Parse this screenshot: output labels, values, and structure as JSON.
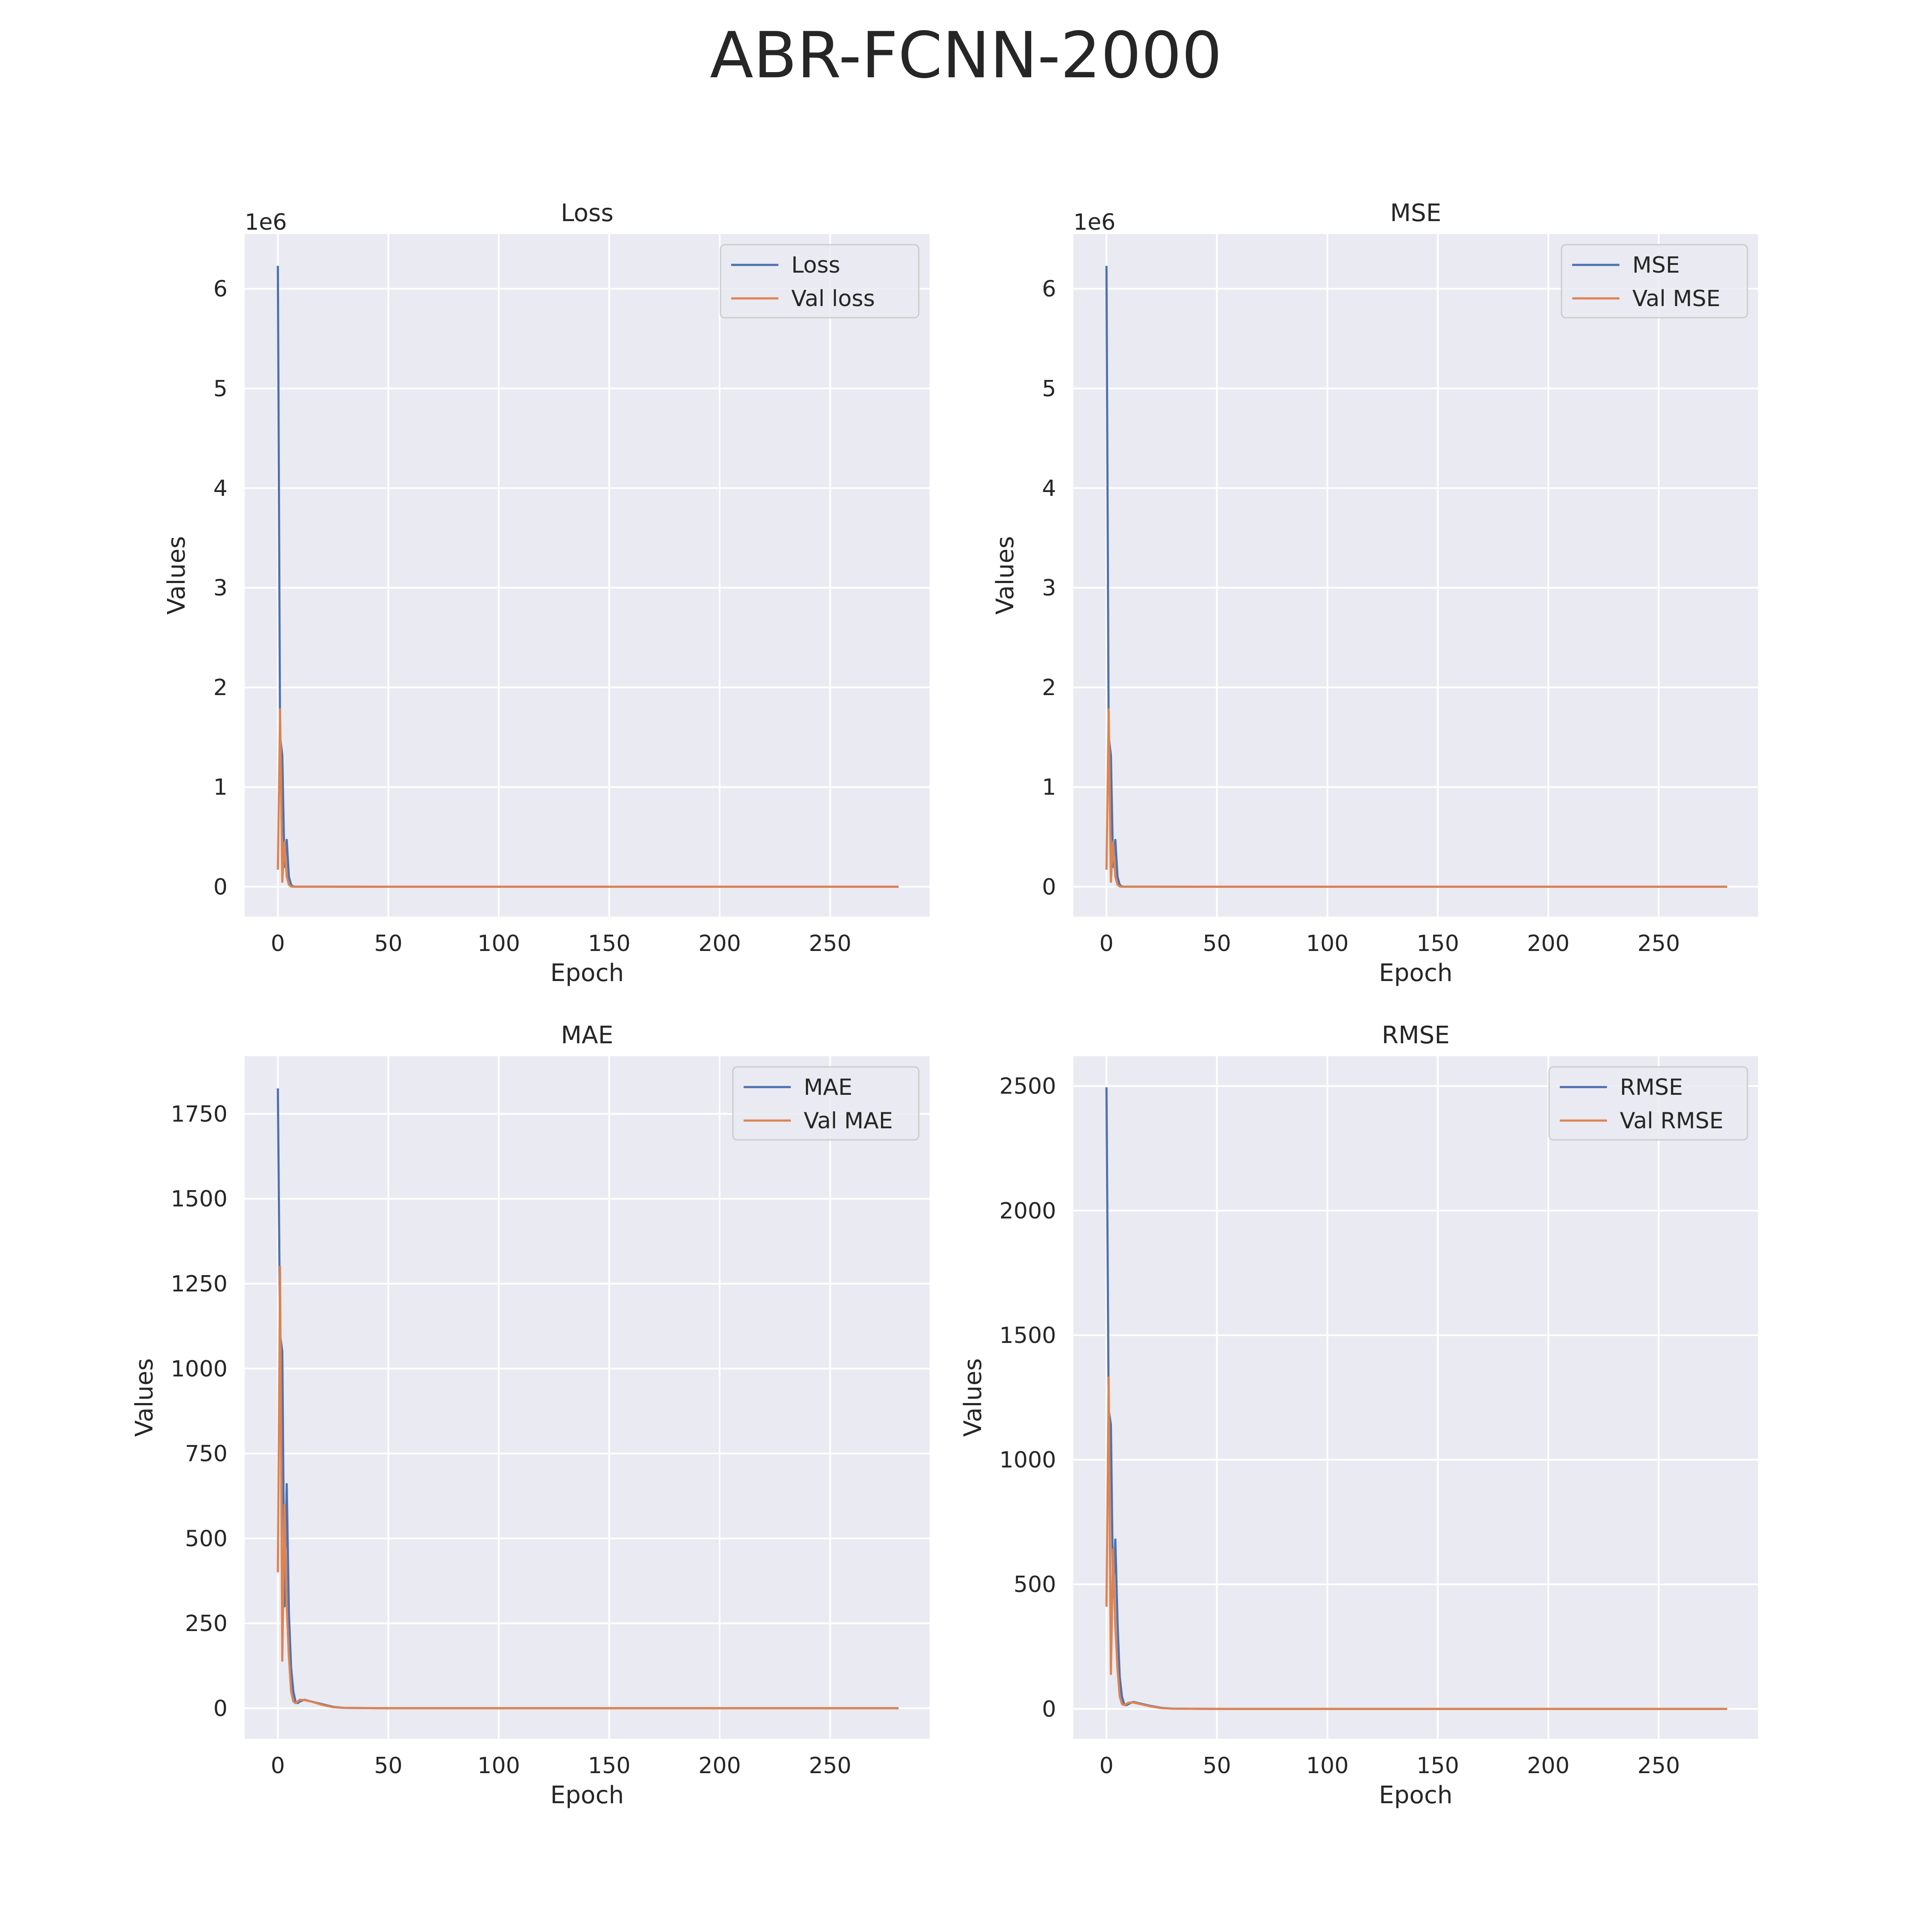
{
  "figure": {
    "title": "ABR-FCNN-2000",
    "colors": {
      "train": "#4c72b0",
      "val": "#dd8452",
      "plot_bg": "#eaeaf2",
      "grid": "#ffffff",
      "text": "#262626"
    }
  },
  "chart_data": [
    {
      "type": "line",
      "title": "Loss",
      "xlabel": "Epoch",
      "ylabel": "Values",
      "offset_text": "1e6",
      "scale": 1000000,
      "xlim": [
        -15,
        295
      ],
      "ylim": [
        -300000,
        6550000
      ],
      "xticks": [
        0,
        50,
        100,
        150,
        200,
        250
      ],
      "xtick_labels": [
        "0",
        "50",
        "100",
        "150",
        "200",
        "250"
      ],
      "yticks": [
        0,
        1000000,
        2000000,
        3000000,
        4000000,
        5000000,
        6000000
      ],
      "ytick_labels": [
        "0",
        "1",
        "2",
        "3",
        "4",
        "5",
        "6"
      ],
      "grid": true,
      "legend_position": "upper right",
      "series": [
        {
          "name": "Loss",
          "x": [
            0,
            1,
            2,
            3,
            4,
            5,
            6,
            7,
            8,
            10,
            15,
            20,
            50,
            100,
            150,
            200,
            250,
            281
          ],
          "y": [
            6230000,
            1500000,
            1320000,
            200000,
            470000,
            100000,
            20000,
            3000,
            500,
            300,
            500,
            100,
            0,
            0,
            0,
            0,
            0,
            0
          ]
        },
        {
          "name": "Val loss",
          "x": [
            0,
            1,
            2,
            3,
            4,
            5,
            6,
            7,
            8,
            10,
            15,
            20,
            50,
            100,
            150,
            200,
            250,
            281
          ],
          "y": [
            170000,
            1780000,
            50000,
            450000,
            100000,
            20000,
            3000,
            500,
            300,
            600,
            400,
            100,
            0,
            0,
            0,
            0,
            0,
            0
          ]
        }
      ]
    },
    {
      "type": "line",
      "title": "MSE",
      "xlabel": "Epoch",
      "ylabel": "Values",
      "offset_text": "1e6",
      "scale": 1000000,
      "xlim": [
        -15,
        295
      ],
      "ylim": [
        -300000,
        6550000
      ],
      "xticks": [
        0,
        50,
        100,
        150,
        200,
        250
      ],
      "xtick_labels": [
        "0",
        "50",
        "100",
        "150",
        "200",
        "250"
      ],
      "yticks": [
        0,
        1000000,
        2000000,
        3000000,
        4000000,
        5000000,
        6000000
      ],
      "ytick_labels": [
        "0",
        "1",
        "2",
        "3",
        "4",
        "5",
        "6"
      ],
      "grid": true,
      "legend_position": "upper right",
      "series": [
        {
          "name": "MSE",
          "x": [
            0,
            1,
            2,
            3,
            4,
            5,
            6,
            7,
            8,
            10,
            15,
            20,
            50,
            100,
            150,
            200,
            250,
            281
          ],
          "y": [
            6230000,
            1500000,
            1320000,
            200000,
            470000,
            100000,
            20000,
            3000,
            500,
            300,
            500,
            100,
            0,
            0,
            0,
            0,
            0,
            0
          ]
        },
        {
          "name": "Val MSE",
          "x": [
            0,
            1,
            2,
            3,
            4,
            5,
            6,
            7,
            8,
            10,
            15,
            20,
            50,
            100,
            150,
            200,
            250,
            281
          ],
          "y": [
            170000,
            1780000,
            50000,
            450000,
            100000,
            20000,
            3000,
            500,
            300,
            600,
            400,
            100,
            0,
            0,
            0,
            0,
            0,
            0
          ]
        }
      ]
    },
    {
      "type": "line",
      "title": "MAE",
      "xlabel": "Epoch",
      "ylabel": "Values",
      "offset_text": "",
      "scale": 1,
      "xlim": [
        -15,
        295
      ],
      "ylim": [
        -90,
        1920
      ],
      "xticks": [
        0,
        50,
        100,
        150,
        200,
        250
      ],
      "xtick_labels": [
        "0",
        "50",
        "100",
        "150",
        "200",
        "250"
      ],
      "yticks": [
        0,
        250,
        500,
        750,
        1000,
        1250,
        1500,
        1750
      ],
      "ytick_labels": [
        "0",
        "250",
        "500",
        "750",
        "1000",
        "1250",
        "1500",
        "1750"
      ],
      "grid": true,
      "legend_position": "upper right",
      "series": [
        {
          "name": "MAE",
          "x": [
            0,
            1,
            2,
            3,
            4,
            5,
            6,
            7,
            8,
            9,
            10,
            12,
            15,
            20,
            25,
            30,
            50,
            100,
            150,
            200,
            250,
            281
          ],
          "y": [
            1825,
            1100,
            1050,
            300,
            660,
            280,
            120,
            50,
            20,
            15,
            20,
            25,
            20,
            12,
            4,
            1,
            0,
            0,
            0,
            0,
            0,
            0
          ]
        },
        {
          "name": "Val MAE",
          "x": [
            0,
            1,
            2,
            3,
            4,
            5,
            6,
            7,
            8,
            9,
            10,
            12,
            15,
            20,
            25,
            30,
            50,
            100,
            150,
            200,
            250,
            281
          ],
          "y": [
            400,
            1300,
            140,
            600,
            300,
            150,
            50,
            20,
            15,
            20,
            25,
            24,
            20,
            10,
            3,
            1,
            0,
            0,
            0,
            0,
            0,
            0
          ]
        }
      ]
    },
    {
      "type": "line",
      "title": "RMSE",
      "xlabel": "Epoch",
      "ylabel": "Values",
      "offset_text": "",
      "scale": 1,
      "xlim": [
        -15,
        295
      ],
      "ylim": [
        -120,
        2620
      ],
      "xticks": [
        0,
        50,
        100,
        150,
        200,
        250
      ],
      "xtick_labels": [
        "0",
        "50",
        "100",
        "150",
        "200",
        "250"
      ],
      "yticks": [
        0,
        500,
        1000,
        1500,
        2000,
        2500
      ],
      "ytick_labels": [
        "0",
        "500",
        "1000",
        "1500",
        "2000",
        "2500"
      ],
      "grid": true,
      "legend_position": "upper right",
      "series": [
        {
          "name": "RMSE",
          "x": [
            0,
            1,
            2,
            3,
            4,
            5,
            6,
            7,
            8,
            9,
            10,
            12,
            15,
            20,
            25,
            30,
            50,
            100,
            150,
            200,
            250,
            281
          ],
          "y": [
            2495,
            1200,
            1140,
            450,
            680,
            350,
            130,
            50,
            20,
            15,
            20,
            28,
            22,
            12,
            4,
            1,
            0,
            0,
            0,
            0,
            0,
            0
          ]
        },
        {
          "name": "Val RMSE",
          "x": [
            0,
            1,
            2,
            3,
            4,
            5,
            6,
            7,
            8,
            9,
            10,
            12,
            15,
            20,
            25,
            30,
            50,
            100,
            150,
            200,
            250,
            281
          ],
          "y": [
            410,
            1330,
            140,
            640,
            330,
            160,
            50,
            20,
            15,
            20,
            25,
            26,
            20,
            10,
            3,
            1,
            0,
            0,
            0,
            0,
            0,
            0
          ]
        }
      ]
    }
  ]
}
